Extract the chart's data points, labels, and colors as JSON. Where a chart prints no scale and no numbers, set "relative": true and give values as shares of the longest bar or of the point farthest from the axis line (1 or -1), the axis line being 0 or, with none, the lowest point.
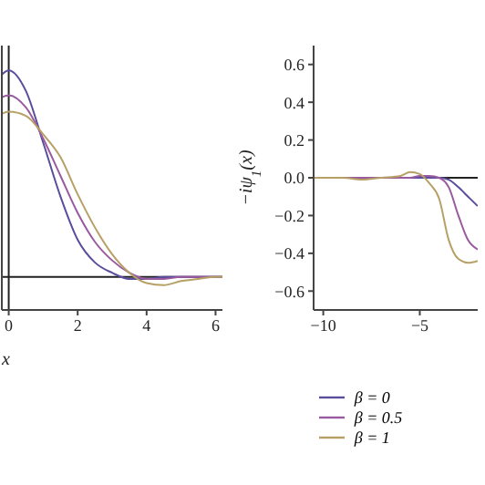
{
  "chart_data": [
    {
      "type": "line",
      "xlabel": "x",
      "relative": true,
      "tick_labels": "x",
      "x": [
        -0.2,
        0,
        0.5,
        1,
        1.5,
        2,
        2.5,
        3,
        3.5,
        4,
        4.5,
        5,
        5.5,
        6,
        6.2
      ],
      "xlim": [
        -0.2,
        6.2
      ],
      "xticks": [
        0,
        2,
        4,
        6
      ],
      "ref_lines": [
        {
          "axis": "y",
          "value": 0,
          "color": "#222222"
        },
        {
          "axis": "x",
          "value": 0,
          "color": "#222222"
        }
      ],
      "legend": false,
      "marker": "none",
      "series": [
        {
          "color": "#5a4e9c",
          "values": [
            0.98,
            1,
            0.9,
            0.65,
            0.39,
            0.18,
            0.07,
            0.02,
            -0.01,
            -0.01,
            0,
            0,
            0,
            0,
            0
          ]
        },
        {
          "color": "#9a5aa0",
          "values": [
            0.87,
            0.88,
            0.82,
            0.67,
            0.49,
            0.31,
            0.17,
            0.08,
            0.02,
            -0.01,
            -0.01,
            0,
            0,
            0,
            0
          ]
        },
        {
          "color": "#b6a066",
          "values": [
            0.79,
            0.8,
            0.78,
            0.69,
            0.58,
            0.4,
            0.24,
            0.11,
            0.02,
            -0.03,
            -0.04,
            -0.02,
            -0.01,
            0,
            0
          ]
        }
      ]
    },
    {
      "type": "line",
      "ylabel": "−iψ$_{1}$(x)",
      "x": [
        -10.5,
        -10,
        -9,
        -8,
        -7,
        -6,
        -5.5,
        -5,
        -4.5,
        -4,
        -3.5,
        -3,
        -2.5,
        -2
      ],
      "xlim": [
        -10.5,
        -2
      ],
      "xticks": [
        -10,
        -5
      ],
      "ylim": [
        -0.7,
        0.7
      ],
      "yticks": [
        -0.6,
        -0.4,
        -0.2,
        {
          "value": 0,
          "label": "0.0"
        },
        0.2,
        0.4,
        0.6
      ],
      "ref_lines": [
        {
          "axis": "y",
          "value": 0,
          "color": "#222222"
        }
      ],
      "legend": "bottom",
      "marker": "none",
      "series": [
        {
          "name": "β = 0",
          "color": "#5a4e9c",
          "values": [
            null,
            null,
            null,
            null,
            null,
            0,
            0,
            0,
            0,
            0,
            -0.01,
            -0.05,
            -0.1,
            -0.15
          ]
        },
        {
          "name": "β = 0.5",
          "color": "#9a5aa0",
          "values": [
            0,
            0,
            0,
            0,
            0,
            0,
            0,
            0.01,
            0.01,
            0,
            -0.05,
            -0.2,
            -0.33,
            -0.38
          ]
        },
        {
          "name": "β = 1",
          "color": "#b6a066",
          "values": [
            0,
            0,
            0,
            -0.01,
            0,
            0.01,
            0.03,
            0.02,
            -0.03,
            -0.11,
            -0.33,
            -0.43,
            -0.45,
            -0.44
          ]
        }
      ]
    }
  ]
}
